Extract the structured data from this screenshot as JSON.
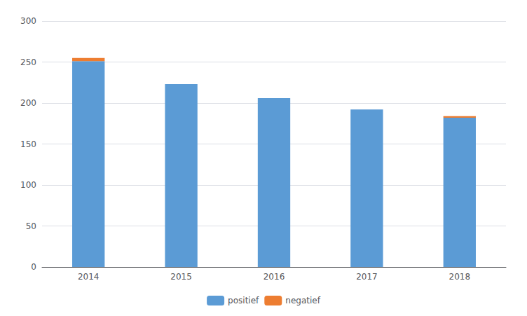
{
  "chart_data": {
    "type": "bar",
    "categories": [
      "2014",
      "2015",
      "2016",
      "2017",
      "2018"
    ],
    "series": [
      {
        "name": "positief",
        "color": "#5B9BD5",
        "values": [
          251,
          223,
          206,
          192,
          182
        ]
      },
      {
        "name": "negatief",
        "color": "#ED7D31",
        "values": [
          4,
          0,
          0,
          0,
          2
        ]
      }
    ],
    "stacked": true,
    "ylim": [
      0,
      300
    ],
    "yticks": [
      0,
      50,
      100,
      150,
      200,
      250,
      300
    ],
    "grid": true,
    "legend": "bottom"
  }
}
